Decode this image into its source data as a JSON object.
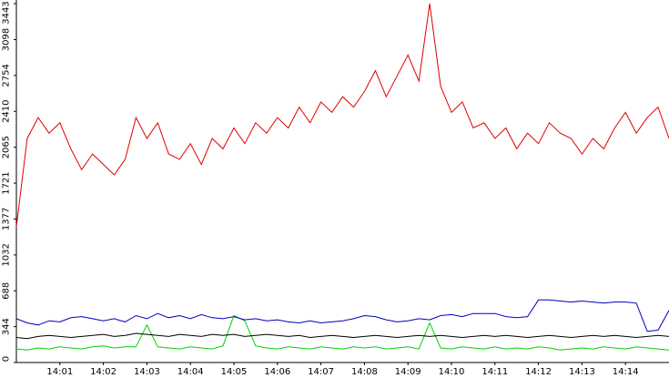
{
  "chart_data": {
    "type": "line",
    "x": [
      840,
      840.25,
      840.5,
      840.75,
      841,
      841.25,
      841.5,
      841.75,
      842,
      842.25,
      842.5,
      842.75,
      843,
      843.25,
      843.5,
      843.75,
      844,
      844.25,
      844.5,
      844.75,
      845,
      845.25,
      845.5,
      845.75,
      846,
      846.25,
      846.5,
      846.75,
      847,
      847.25,
      847.5,
      847.75,
      848,
      848.25,
      848.5,
      848.75,
      849,
      849.25,
      849.5,
      849.75,
      850,
      850.25,
      850.5,
      850.75,
      851,
      851.25,
      851.5,
      851.75,
      852,
      852.25,
      852.5,
      852.75,
      853,
      853.25,
      853.5,
      853.75,
      854,
      854.25,
      854.5,
      854.75,
      855
    ],
    "series": [
      {
        "color": "#e00000",
        "values": [
          1300,
          2150,
          2350,
          2200,
          2300,
          2050,
          1850,
          2000,
          1900,
          1800,
          1950,
          2350,
          2150,
          2300,
          2000,
          1950,
          2100,
          1900,
          2150,
          2050,
          2250,
          2100,
          2300,
          2200,
          2350,
          2250,
          2450,
          2300,
          2500,
          2400,
          2550,
          2450,
          2600,
          2800,
          2550,
          2750,
          2950,
          2700,
          3443,
          2650,
          2400,
          2500,
          2250,
          2300,
          2150,
          2250,
          2050,
          2200,
          2100,
          2300,
          2200,
          2150,
          2000,
          2150,
          2050,
          2250,
          2400,
          2200,
          2350,
          2450,
          2150
        ]
      },
      {
        "color": "#0000c0",
        "values": [
          420,
          380,
          360,
          400,
          390,
          430,
          440,
          420,
          400,
          420,
          390,
          450,
          420,
          470,
          430,
          450,
          420,
          460,
          430,
          420,
          440,
          410,
          420,
          400,
          410,
          390,
          380,
          400,
          380,
          390,
          400,
          420,
          450,
          440,
          410,
          390,
          400,
          420,
          410,
          450,
          460,
          440,
          470,
          470,
          470,
          440,
          430,
          440,
          600,
          600,
          590,
          580,
          590,
          580,
          570,
          580,
          580,
          570,
          300,
          310,
          500
        ]
      },
      {
        "color": "#000000",
        "values": [
          240,
          230,
          250,
          260,
          250,
          240,
          250,
          260,
          270,
          250,
          260,
          280,
          270,
          260,
          250,
          270,
          260,
          250,
          270,
          260,
          270,
          250,
          260,
          270,
          260,
          250,
          260,
          240,
          250,
          260,
          250,
          240,
          250,
          260,
          250,
          240,
          250,
          260,
          250,
          260,
          250,
          240,
          250,
          260,
          250,
          260,
          250,
          240,
          250,
          260,
          250,
          240,
          250,
          260,
          250,
          260,
          250,
          240,
          250,
          260,
          250
        ]
      },
      {
        "color": "#00d000",
        "values": [
          130,
          120,
          140,
          130,
          150,
          140,
          130,
          150,
          160,
          140,
          150,
          150,
          360,
          150,
          140,
          130,
          150,
          140,
          130,
          160,
          450,
          400,
          160,
          140,
          130,
          150,
          140,
          130,
          150,
          140,
          130,
          150,
          140,
          150,
          130,
          140,
          150,
          130,
          380,
          140,
          130,
          150,
          140,
          130,
          150,
          130,
          140,
          130,
          150,
          140,
          120,
          130,
          140,
          130,
          150,
          140,
          130,
          150,
          140,
          130,
          120
        ]
      }
    ],
    "xlim": [
      840,
      855
    ],
    "xticks": [
      {
        "value": 841,
        "label": "14:01"
      },
      {
        "value": 842,
        "label": "14:02"
      },
      {
        "value": 843,
        "label": "14:03"
      },
      {
        "value": 844,
        "label": "14:04"
      },
      {
        "value": 845,
        "label": "14:05"
      },
      {
        "value": 846,
        "label": "14:06"
      },
      {
        "value": 847,
        "label": "14:07"
      },
      {
        "value": 848,
        "label": "14:08"
      },
      {
        "value": 849,
        "label": "14:09"
      },
      {
        "value": 850,
        "label": "14:10"
      },
      {
        "value": 851,
        "label": "14:11"
      },
      {
        "value": 852,
        "label": "14:12"
      },
      {
        "value": 853,
        "label": "14:13"
      },
      {
        "value": 854,
        "label": "14:14"
      }
    ],
    "ylim": [
      0,
      3443
    ],
    "yticks": [
      0,
      344,
      688,
      1032,
      1377,
      1721,
      2065,
      2410,
      2754,
      3098,
      3443
    ]
  }
}
